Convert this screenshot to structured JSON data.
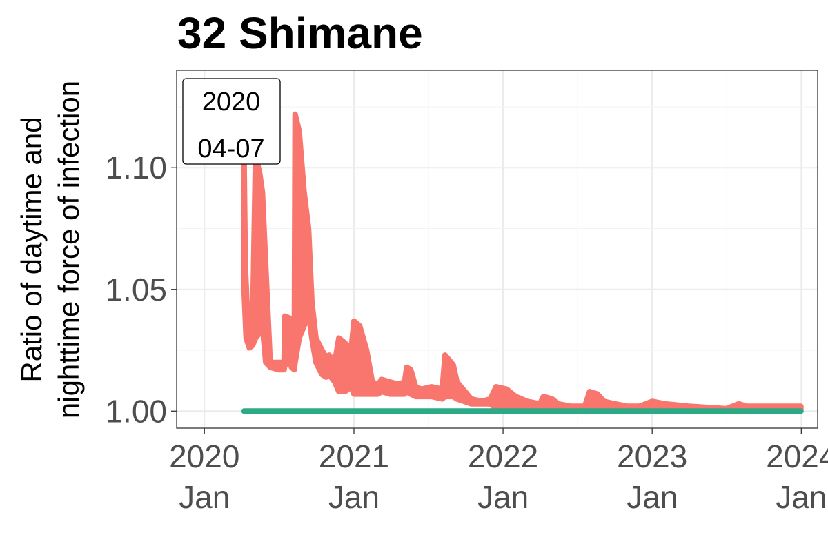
{
  "chart_data": {
    "type": "line",
    "title": "32 Shimane",
    "ylabel_lines": [
      "Ratio of daytime and",
      "nighttime force of infection"
    ],
    "xlabel": "",
    "x_ticks": [
      {
        "date": "2020-01-01",
        "year": "2020",
        "month": "Jan"
      },
      {
        "date": "2021-01-01",
        "year": "2021",
        "month": "Jan"
      },
      {
        "date": "2022-01-01",
        "year": "2022",
        "month": "Jan"
      },
      {
        "date": "2023-01-01",
        "year": "2023",
        "month": "Jan"
      },
      {
        "date": "2024-01-01",
        "year": "2024",
        "month": "Jan"
      }
    ],
    "y_ticks": [
      {
        "value": 1.0,
        "label": "1.00"
      },
      {
        "value": 1.05,
        "label": "1.05"
      },
      {
        "value": 1.1,
        "label": "1.10"
      }
    ],
    "xlim": [
      "2019-10-25",
      "2024-02-10"
    ],
    "ylim": [
      0.993,
      1.14
    ],
    "grid": true,
    "annotation": {
      "line1": "2020",
      "line2": "04-07",
      "placement": "top-left"
    },
    "series": [
      {
        "color": "#F8766D",
        "lines": [
          {
            "upper": [
              [
                "2020-04-07",
                1.105
              ],
              [
                "2020-04-10",
                1.06
              ],
              [
                "2020-04-14",
                1.045
              ],
              [
                "2020-04-20",
                1.04
              ],
              [
                "2020-04-28",
                1.035
              ],
              [
                "2020-05-05",
                1.105
              ],
              [
                "2020-05-15",
                1.098
              ],
              [
                "2020-05-22",
                1.09
              ],
              [
                "2020-05-30",
                1.06
              ],
              [
                "2020-06-10",
                1.02
              ],
              [
                "2020-07-01",
                1.02
              ],
              [
                "2020-07-14",
                1.02
              ],
              [
                "2020-07-16",
                1.039
              ],
              [
                "2020-07-30",
                1.038
              ],
              [
                "2020-08-01",
                1.02
              ],
              [
                "2020-08-08",
                1.02
              ],
              [
                "2020-08-10",
                1.122
              ],
              [
                "2020-08-20",
                1.115
              ],
              [
                "2020-09-01",
                1.09
              ],
              [
                "2020-09-12",
                1.075
              ],
              [
                "2020-09-20",
                1.045
              ],
              [
                "2020-09-30",
                1.03
              ],
              [
                "2020-10-15",
                1.025
              ],
              [
                "2020-10-25",
                1.022
              ],
              [
                "2020-11-01",
                1.023
              ],
              [
                "2020-11-15",
                1.02
              ],
              [
                "2020-11-25",
                1.03
              ],
              [
                "2020-12-10",
                1.028
              ],
              [
                "2020-12-25",
                1.025
              ],
              [
                "2021-01-01",
                1.037
              ],
              [
                "2021-01-15",
                1.035
              ],
              [
                "2021-02-01",
                1.025
              ],
              [
                "2021-02-15",
                1.012
              ],
              [
                "2021-03-01",
                1.011
              ],
              [
                "2021-03-10",
                1.013
              ],
              [
                "2021-03-30",
                1.012
              ],
              [
                "2021-04-20",
                1.011
              ],
              [
                "2021-05-05",
                1.012
              ],
              [
                "2021-05-10",
                1.018
              ],
              [
                "2021-05-20",
                1.017
              ],
              [
                "2021-06-01",
                1.01
              ],
              [
                "2021-06-15",
                1.009
              ],
              [
                "2021-07-10",
                1.01
              ],
              [
                "2021-08-05",
                1.009
              ],
              [
                "2021-08-12",
                1.023
              ],
              [
                "2021-08-22",
                1.021
              ],
              [
                "2021-09-01",
                1.019
              ],
              [
                "2021-09-10",
                1.012
              ],
              [
                "2021-10-15",
                1.005
              ],
              [
                "2021-11-10",
                1.004
              ],
              [
                "2021-12-01",
                1.005
              ],
              [
                "2021-12-15",
                1.01
              ],
              [
                "2022-01-10",
                1.009
              ],
              [
                "2022-02-01",
                1.006
              ],
              [
                "2022-03-01",
                1.004
              ],
              [
                "2022-04-01",
                1.003
              ],
              [
                "2022-04-10",
                1.006
              ],
              [
                "2022-05-01",
                1.005
              ],
              [
                "2022-05-15",
                1.003
              ],
              [
                "2022-06-15",
                1.002
              ],
              [
                "2022-07-20",
                1.002
              ],
              [
                "2022-08-01",
                1.008
              ],
              [
                "2022-08-20",
                1.007
              ],
              [
                "2022-09-05",
                1.004
              ],
              [
                "2022-10-01",
                1.003
              ],
              [
                "2022-11-01",
                1.002
              ],
              [
                "2022-12-01",
                1.002
              ],
              [
                "2023-01-01",
                1.004
              ],
              [
                "2023-02-01",
                1.003
              ],
              [
                "2023-04-01",
                1.002
              ],
              [
                "2023-07-01",
                1.001
              ],
              [
                "2023-08-01",
                1.003
              ],
              [
                "2023-08-20",
                1.002
              ],
              [
                "2023-10-01",
                1.002
              ],
              [
                "2023-12-31",
                1.002
              ]
            ],
            "lower": [
              [
                "2020-04-07",
                1.05
              ],
              [
                "2020-04-12",
                1.03
              ],
              [
                "2020-04-20",
                1.026
              ],
              [
                "2020-04-28",
                1.027
              ],
              [
                "2020-05-05",
                1.03
              ],
              [
                "2020-05-15",
                1.032
              ],
              [
                "2020-05-22",
                1.035
              ],
              [
                "2020-05-30",
                1.02
              ],
              [
                "2020-06-10",
                1.018
              ],
              [
                "2020-07-01",
                1.017
              ],
              [
                "2020-07-14",
                1.017
              ],
              [
                "2020-07-16",
                1.019
              ],
              [
                "2020-07-30",
                1.02
              ],
              [
                "2020-08-01",
                1.018
              ],
              [
                "2020-08-08",
                1.017
              ],
              [
                "2020-08-10",
                1.02
              ],
              [
                "2020-08-20",
                1.03
              ],
              [
                "2020-09-01",
                1.035
              ],
              [
                "2020-09-12",
                1.04
              ],
              [
                "2020-09-20",
                1.03
              ],
              [
                "2020-09-30",
                1.02
              ],
              [
                "2020-10-15",
                1.015
              ],
              [
                "2020-10-25",
                1.014
              ],
              [
                "2020-11-01",
                1.015
              ],
              [
                "2020-11-15",
                1.012
              ],
              [
                "2020-11-25",
                1.008
              ],
              [
                "2020-12-10",
                1.008
              ],
              [
                "2020-12-25",
                1.01
              ],
              [
                "2021-01-01",
                1.007
              ],
              [
                "2021-01-15",
                1.007
              ],
              [
                "2021-02-01",
                1.007
              ],
              [
                "2021-02-15",
                1.007
              ],
              [
                "2021-03-01",
                1.007
              ],
              [
                "2021-03-10",
                1.008
              ],
              [
                "2021-03-30",
                1.007
              ],
              [
                "2021-04-20",
                1.007
              ],
              [
                "2021-05-05",
                1.007
              ],
              [
                "2021-05-10",
                1.008
              ],
              [
                "2021-05-20",
                1.007
              ],
              [
                "2021-06-01",
                1.006
              ],
              [
                "2021-06-15",
                1.006
              ],
              [
                "2021-07-10",
                1.006
              ],
              [
                "2021-08-05",
                1.005
              ],
              [
                "2021-08-12",
                1.006
              ],
              [
                "2021-08-22",
                1.006
              ],
              [
                "2021-09-01",
                1.006
              ],
              [
                "2021-09-10",
                1.005
              ],
              [
                "2021-10-15",
                1.003
              ],
              [
                "2021-11-10",
                1.003
              ],
              [
                "2021-12-01",
                1.003
              ],
              [
                "2021-12-15",
                1.001
              ],
              [
                "2022-01-10",
                1.002
              ],
              [
                "2022-02-01",
                1.002
              ],
              [
                "2022-03-01",
                1.002
              ],
              [
                "2022-04-01",
                1.002
              ],
              [
                "2022-04-10",
                1.002
              ],
              [
                "2022-05-01",
                1.002
              ],
              [
                "2022-05-15",
                1.001
              ],
              [
                "2022-06-15",
                1.001
              ],
              [
                "2022-07-20",
                1.001
              ],
              [
                "2022-08-01",
                1.001
              ],
              [
                "2022-08-20",
                1.002
              ],
              [
                "2022-09-05",
                1.002
              ],
              [
                "2022-10-01",
                1.001
              ],
              [
                "2022-11-01",
                1.001
              ],
              [
                "2022-12-01",
                1.001
              ],
              [
                "2023-01-01",
                1.0
              ],
              [
                "2023-02-01",
                1.001
              ],
              [
                "2023-04-01",
                1.001
              ],
              [
                "2023-07-01",
                1.0
              ],
              [
                "2023-08-01",
                1.0
              ],
              [
                "2023-08-20",
                1.001
              ],
              [
                "2023-10-01",
                1.001
              ],
              [
                "2023-12-31",
                1.0
              ]
            ]
          }
        ]
      },
      {
        "color": "#2CAA86",
        "lines": [
          {
            "upper": [
              [
                "2020-04-07",
                1.0
              ],
              [
                "2023-12-31",
                1.0
              ]
            ],
            "lower": [
              [
                "2020-04-07",
                1.0
              ],
              [
                "2023-12-31",
                1.0
              ]
            ]
          }
        ]
      }
    ]
  }
}
